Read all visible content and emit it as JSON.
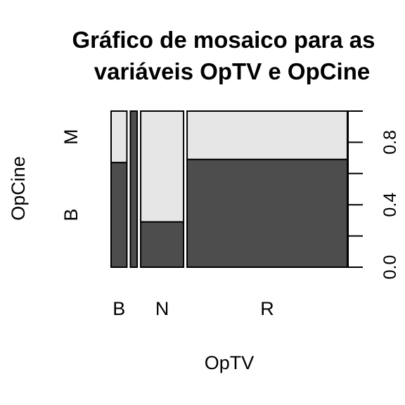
{
  "chart_data": {
    "type": "mosaic",
    "title": "Gráfico de mosaico para as variáveis OpTV e OpCine",
    "title_lines": [
      "Gráfico de mosaico para as",
      "variáveis OpTV e OpCine"
    ],
    "xlabel": "OpTV",
    "ylabel": "OpCine",
    "x_categories": [
      "B",
      "",
      "N",
      "R"
    ],
    "x_category_labels": [
      "B",
      "N",
      "R"
    ],
    "x_widths": [
      0.07,
      0.03,
      0.19,
      0.71
    ],
    "y_categories": [
      "B",
      "M"
    ],
    "lower_share": [
      0.67,
      1.0,
      0.29,
      0.69
    ],
    "fill_lower": "#4d4d4d",
    "fill_upper": "#e6e6e6",
    "right_axis": {
      "range": [
        0,
        1
      ],
      "ticks": [
        0.0,
        0.2,
        0.4,
        0.6,
        0.8,
        1.0
      ],
      "tick_labels": [
        "0.0",
        "0.4",
        "0.8"
      ]
    }
  }
}
